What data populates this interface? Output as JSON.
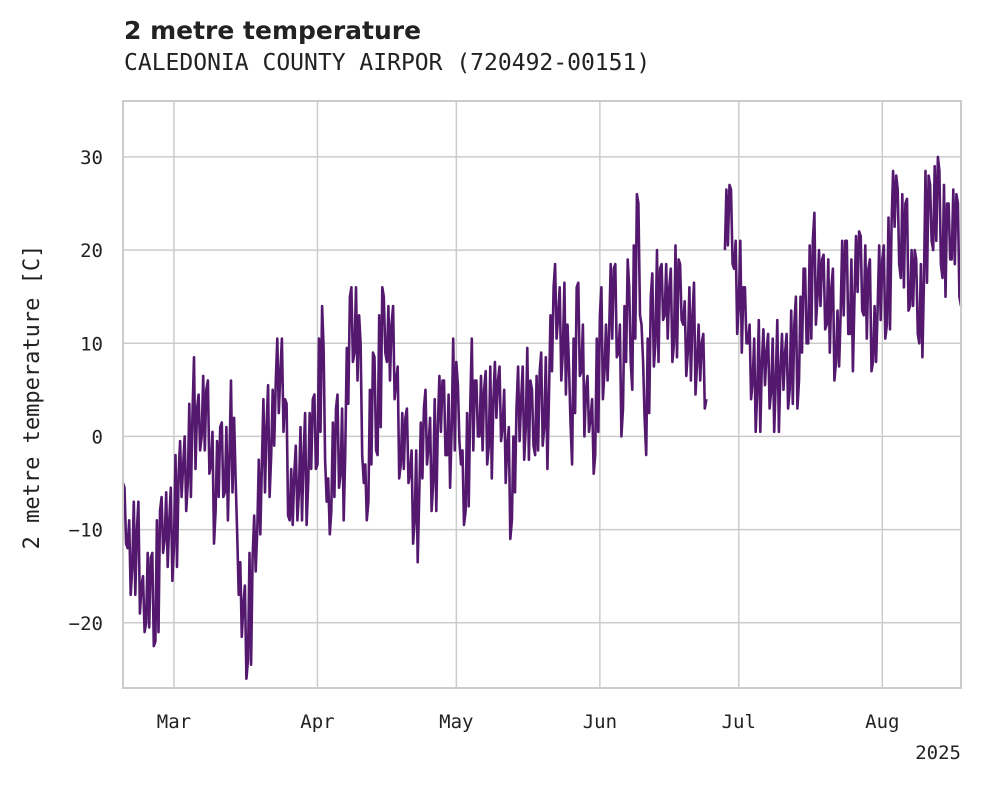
{
  "chart_data": {
    "type": "line",
    "title": "2 metre temperature",
    "subtitle": "CALEDONIA COUNTY AIRPOR (720492-00151)",
    "xlabel": "",
    "ylabel": "2 metre temperature [C]",
    "x_ticks": [
      "Mar",
      "Apr",
      "May",
      "Jun",
      "Jul",
      "Aug"
    ],
    "x_tick_dates": [
      "2025-03-01",
      "2025-04-01",
      "2025-05-01",
      "2025-06-01",
      "2025-07-01",
      "2025-08-01"
    ],
    "x_offset_label": "2025",
    "xlim": [
      "2025-02-18",
      "2025-08-18"
    ],
    "y_ticks": [
      -20,
      -10,
      0,
      10,
      20,
      30
    ],
    "ylim": [
      -27,
      36
    ],
    "grid": true,
    "line_color": "#54196e",
    "series": [
      {
        "points": [
          [
            "2025-02-18",
            -5
          ],
          [
            "2025-02-19",
            -12
          ],
          [
            "2025-02-20",
            -14
          ],
          [
            "2025-02-21",
            -10
          ],
          [
            "2025-02-22",
            -16
          ],
          [
            "2025-02-23",
            -20
          ],
          [
            "2025-02-24",
            -13
          ],
          [
            "2025-02-25",
            -22
          ],
          [
            "2025-02-26",
            -8
          ],
          [
            "2025-02-27",
            -11
          ],
          [
            "2025-02-28",
            -9
          ],
          [
            "2025-03-01",
            -12
          ],
          [
            "2025-03-02",
            -4
          ],
          [
            "2025-03-03",
            -3
          ],
          [
            "2025-03-04",
            -5
          ],
          [
            "2025-03-05",
            2
          ],
          [
            "2025-03-06",
            3
          ],
          [
            "2025-03-07",
            0
          ],
          [
            "2025-03-08",
            5
          ],
          [
            "2025-03-09",
            -3
          ],
          [
            "2025-03-10",
            -8
          ],
          [
            "2025-03-11",
            1
          ],
          [
            "2025-03-12",
            -6
          ],
          [
            "2025-03-13",
            -2
          ],
          [
            "2025-03-14",
            2
          ],
          [
            "2025-03-15",
            -17
          ],
          [
            "2025-03-16",
            -18
          ],
          [
            "2025-03-17",
            -24
          ],
          [
            "2025-03-18",
            -13
          ],
          [
            "2025-03-19",
            -10
          ],
          [
            "2025-03-20",
            -3
          ],
          [
            "2025-03-21",
            1
          ],
          [
            "2025-03-22",
            -2
          ],
          [
            "2025-03-23",
            6
          ],
          [
            "2025-03-24",
            7
          ],
          [
            "2025-03-25",
            4
          ],
          [
            "2025-03-26",
            -9
          ],
          [
            "2025-03-27",
            -4
          ],
          [
            "2025-03-28",
            -6
          ],
          [
            "2025-03-29",
            -2
          ],
          [
            "2025-03-30",
            -5
          ],
          [
            "2025-03-31",
            4
          ],
          [
            "2025-04-01",
            -3
          ],
          [
            "2025-04-02",
            14
          ],
          [
            "2025-04-03",
            -7
          ],
          [
            "2025-04-04",
            -8
          ],
          [
            "2025-04-05",
            3
          ],
          [
            "2025-04-06",
            -4
          ],
          [
            "2025-04-07",
            -2
          ],
          [
            "2025-04-08",
            15
          ],
          [
            "2025-04-09",
            9
          ],
          [
            "2025-04-10",
            13
          ],
          [
            "2025-04-11",
            -5
          ],
          [
            "2025-04-12",
            -7
          ],
          [
            "2025-04-13",
            9
          ],
          [
            "2025-04-14",
            -2
          ],
          [
            "2025-04-15",
            16
          ],
          [
            "2025-04-16",
            8
          ],
          [
            "2025-04-17",
            12
          ],
          [
            "2025-04-18",
            6
          ],
          [
            "2025-04-19",
            -3
          ],
          [
            "2025-04-20",
            2
          ],
          [
            "2025-04-21",
            -4
          ],
          [
            "2025-04-22",
            -9
          ],
          [
            "2025-04-23",
            -6
          ],
          [
            "2025-04-24",
            3
          ],
          [
            "2025-04-25",
            -1
          ],
          [
            "2025-04-26",
            -5
          ],
          [
            "2025-04-27",
            1
          ],
          [
            "2025-04-28",
            6
          ],
          [
            "2025-04-29",
            -2
          ],
          [
            "2025-04-30",
            1
          ],
          [
            "2025-05-01",
            8
          ],
          [
            "2025-05-02",
            -3
          ],
          [
            "2025-05-03",
            -8
          ],
          [
            "2025-05-04",
            3
          ],
          [
            "2025-05-05",
            6
          ],
          [
            "2025-05-06",
            0
          ],
          [
            "2025-05-07",
            5
          ],
          [
            "2025-05-08",
            -1
          ],
          [
            "2025-05-09",
            4
          ],
          [
            "2025-05-10",
            6
          ],
          [
            "2025-05-11",
            1
          ],
          [
            "2025-05-12",
            -1
          ],
          [
            "2025-05-13",
            -9
          ],
          [
            "2025-05-14",
            3
          ],
          [
            "2025-05-15",
            4
          ],
          [
            "2025-05-16",
            1
          ],
          [
            "2025-05-17",
            6
          ],
          [
            "2025-05-18",
            -2
          ],
          [
            "2025-05-19",
            7
          ],
          [
            "2025-05-20",
            1
          ],
          [
            "2025-05-21",
            4
          ],
          [
            "2025-05-22",
            16
          ],
          [
            "2025-05-23",
            13
          ],
          [
            "2025-05-24",
            9
          ],
          [
            "2025-05-25",
            12
          ],
          [
            "2025-05-26",
            -3
          ],
          [
            "2025-05-27",
            16
          ],
          [
            "2025-05-28",
            7
          ],
          [
            "2025-05-29",
            5
          ],
          [
            "2025-05-30",
            2
          ],
          [
            "2025-05-31",
            -2
          ],
          [
            "2025-06-01",
            13
          ],
          [
            "2025-06-02",
            7
          ],
          [
            "2025-06-03",
            11
          ],
          [
            "2025-06-04",
            18
          ],
          [
            "2025-06-05",
            9
          ],
          [
            "2025-06-06",
            3
          ],
          [
            "2025-06-07",
            19
          ],
          [
            "2025-06-08",
            5
          ],
          [
            "2025-06-09",
            26
          ],
          [
            "2025-06-10",
            12
          ],
          [
            "2025-06-11",
            -2
          ],
          [
            "2025-06-12",
            15
          ],
          [
            "2025-06-13",
            10
          ],
          [
            "2025-06-14",
            18
          ],
          [
            "2025-06-15",
            13
          ],
          [
            "2025-06-16",
            16
          ],
          [
            "2025-06-17",
            10
          ],
          [
            "2025-06-18",
            19
          ],
          [
            "2025-06-19",
            12
          ],
          [
            "2025-06-20",
            9
          ],
          [
            "2025-06-21",
            13
          ],
          [
            "2025-06-22",
            8
          ],
          [
            "2025-06-23",
            10
          ],
          [
            "2025-06-24",
            4
          ],
          [
            "2025-06-25",
            null
          ],
          [
            "2025-06-26",
            null
          ],
          [
            "2025-06-27",
            null
          ],
          [
            "2025-06-28",
            20
          ],
          [
            "2025-06-29",
            27
          ],
          [
            "2025-06-30",
            18
          ],
          [
            "2025-07-01",
            14
          ],
          [
            "2025-07-02",
            16
          ],
          [
            "2025-07-03",
            10
          ],
          [
            "2025-07-04",
            6
          ],
          [
            "2025-07-05",
            5
          ],
          [
            "2025-07-06",
            8
          ],
          [
            "2025-07-07",
            9
          ],
          [
            "2025-07-08",
            5
          ],
          [
            "2025-07-09",
            6
          ],
          [
            "2025-07-10",
            7
          ],
          [
            "2025-07-11",
            9
          ],
          [
            "2025-07-12",
            5
          ],
          [
            "2025-07-13",
            12
          ],
          [
            "2025-07-14",
            6
          ],
          [
            "2025-07-15",
            18
          ],
          [
            "2025-07-16",
            10
          ],
          [
            "2025-07-17",
            21
          ],
          [
            "2025-07-18",
            15
          ],
          [
            "2025-07-19",
            19
          ],
          [
            "2025-07-20",
            12
          ],
          [
            "2025-07-21",
            16
          ],
          [
            "2025-07-22",
            8
          ],
          [
            "2025-07-23",
            13
          ],
          [
            "2025-07-24",
            21
          ],
          [
            "2025-07-25",
            11
          ],
          [
            "2025-07-26",
            15
          ],
          [
            "2025-07-27",
            22
          ],
          [
            "2025-07-28",
            13
          ],
          [
            "2025-07-29",
            18
          ],
          [
            "2025-07-30",
            8
          ],
          [
            "2025-07-31",
            14
          ],
          [
            "2025-08-01",
            19
          ],
          [
            "2025-08-02",
            12
          ],
          [
            "2025-08-03",
            23
          ],
          [
            "2025-08-04",
            28
          ],
          [
            "2025-08-05",
            17
          ],
          [
            "2025-08-06",
            25
          ],
          [
            "2025-08-07",
            14
          ],
          [
            "2025-08-08",
            20
          ],
          [
            "2025-08-09",
            10
          ],
          [
            "2025-08-10",
            17
          ],
          [
            "2025-08-11",
            28
          ],
          [
            "2025-08-12",
            20
          ],
          [
            "2025-08-13",
            30
          ],
          [
            "2025-08-14",
            17
          ],
          [
            "2025-08-15",
            25
          ],
          [
            "2025-08-16",
            19
          ],
          [
            "2025-08-17",
            26
          ],
          [
            "2025-08-18",
            14
          ]
        ]
      }
    ]
  }
}
